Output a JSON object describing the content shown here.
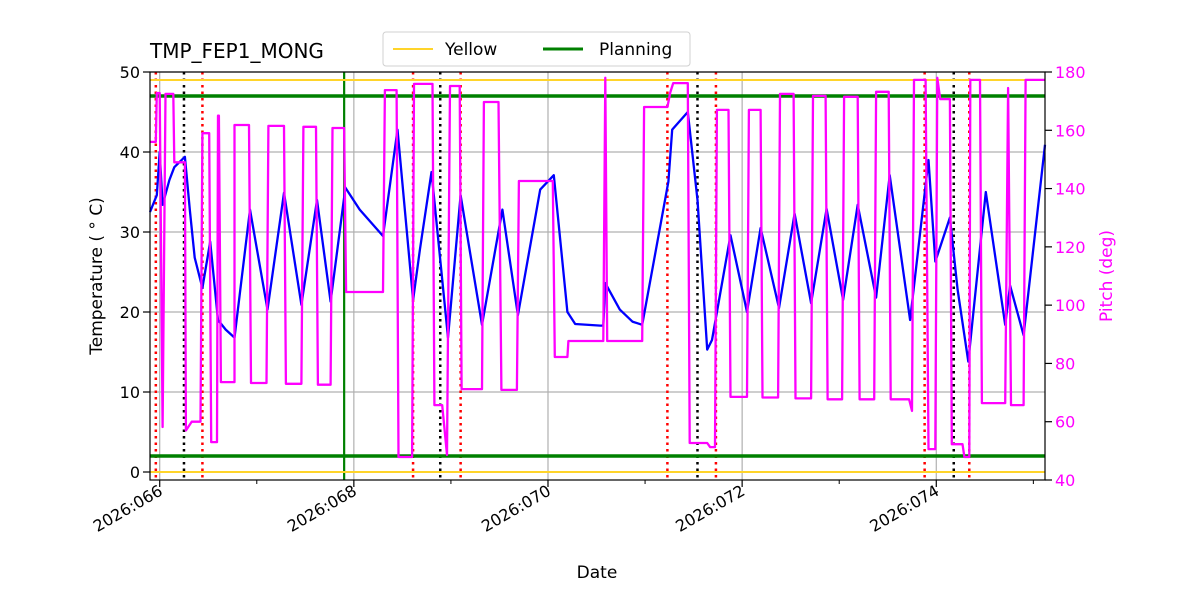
{
  "chart_data": {
    "type": "line",
    "title": "TMP_FEP1_MONG",
    "xlabel": "Date",
    "ylabel": "Temperature ($^\\circ$C)",
    "ylabel_display": "Temperature ( ° C)",
    "y2label": "Pitch (deg)",
    "xlim": [
      65.9,
      75.12
    ],
    "ylim": [
      -1,
      50
    ],
    "y2lim": [
      40,
      180
    ],
    "grid": true,
    "legend_placement": "top-center",
    "x_ticks": [
      {
        "value": 66,
        "label": "2026:066"
      },
      {
        "value": 68,
        "label": "2026:068"
      },
      {
        "value": 70,
        "label": "2026:070"
      },
      {
        "value": 72,
        "label": "2026:072"
      },
      {
        "value": 74,
        "label": "2026:074"
      }
    ],
    "x_minor_ticks": [
      67,
      69,
      71,
      73,
      75
    ],
    "y_ticks": [
      0,
      10,
      20,
      30,
      40,
      50
    ],
    "y2_ticks": [
      40,
      60,
      80,
      100,
      120,
      140,
      160,
      180
    ],
    "colors": {
      "temperature": "#0000ff",
      "pitch": "#ff00ff",
      "yellow": "#ffd42a",
      "planning": "#008000",
      "red_marker": "#ff0000",
      "black_marker": "#000000",
      "grid": "#b0b0b0"
    },
    "limits": [
      {
        "name": "Yellow",
        "values": [
          49,
          0
        ],
        "color": "#ffd42a"
      },
      {
        "name": "Planning",
        "values": [
          47,
          2
        ],
        "color": "#008000"
      }
    ],
    "vertical_markers": {
      "red_dotted": [
        65.96,
        66.44,
        68.61,
        69.1,
        71.23,
        71.73,
        73.88,
        74.34
      ],
      "black_dotted": [
        66.25,
        68.89,
        71.54,
        74.18
      ],
      "green_solid": [
        67.9
      ]
    },
    "series": [
      {
        "axis": "left",
        "points": [
          [
            65.9,
            32.5
          ],
          [
            65.97,
            34.6
          ],
          [
            66.0,
            40.0
          ],
          [
            66.03,
            33.4
          ],
          [
            66.1,
            36.5
          ],
          [
            66.15,
            38.1
          ],
          [
            66.26,
            39.4
          ],
          [
            66.31,
            32.8
          ],
          [
            66.36,
            26.8
          ],
          [
            66.44,
            23.0
          ],
          [
            66.52,
            28.8
          ],
          [
            66.6,
            19.0
          ],
          [
            66.68,
            17.8
          ],
          [
            66.77,
            16.8
          ],
          [
            66.93,
            32.8
          ],
          [
            67.11,
            20.3
          ],
          [
            67.28,
            34.9
          ],
          [
            67.46,
            20.9
          ],
          [
            67.62,
            34.0
          ],
          [
            67.76,
            21.3
          ],
          [
            67.9,
            34.3
          ],
          [
            67.91,
            35.6
          ],
          [
            68.06,
            32.8
          ],
          [
            68.27,
            29.9
          ],
          [
            68.3,
            29.5
          ],
          [
            68.45,
            42.8
          ],
          [
            68.61,
            21.5
          ],
          [
            68.68,
            27.8
          ],
          [
            68.8,
            37.5
          ],
          [
            68.97,
            16.8
          ],
          [
            69.1,
            34.6
          ],
          [
            69.32,
            18.4
          ],
          [
            69.53,
            32.8
          ],
          [
            69.69,
            19.6
          ],
          [
            69.92,
            35.3
          ],
          [
            70.06,
            37.1
          ],
          [
            70.2,
            20.0
          ],
          [
            70.28,
            18.5
          ],
          [
            70.54,
            18.3
          ],
          [
            70.57,
            18.3
          ],
          [
            70.59,
            23.6
          ],
          [
            70.74,
            20.3
          ],
          [
            70.87,
            18.8
          ],
          [
            70.97,
            18.4
          ],
          [
            71.24,
            36.3
          ],
          [
            71.28,
            42.8
          ],
          [
            71.44,
            45.0
          ],
          [
            71.54,
            34.0
          ],
          [
            71.64,
            15.3
          ],
          [
            71.69,
            16.5
          ],
          [
            71.88,
            29.6
          ],
          [
            72.05,
            20.0
          ],
          [
            72.19,
            30.5
          ],
          [
            72.38,
            20.5
          ],
          [
            72.54,
            32.3
          ],
          [
            72.71,
            21.1
          ],
          [
            72.87,
            32.9
          ],
          [
            73.04,
            21.5
          ],
          [
            73.19,
            33.4
          ],
          [
            73.38,
            21.8
          ],
          [
            73.52,
            37.1
          ],
          [
            73.73,
            19.0
          ],
          [
            73.92,
            39.0
          ],
          [
            73.99,
            26.3
          ],
          [
            74.14,
            31.8
          ],
          [
            74.22,
            22.8
          ],
          [
            74.33,
            13.8
          ],
          [
            74.51,
            35.0
          ],
          [
            74.71,
            18.4
          ],
          [
            74.76,
            23.3
          ],
          [
            74.9,
            17.1
          ],
          [
            75.12,
            40.9
          ]
        ]
      },
      {
        "axis": "right",
        "points": [
          [
            65.9,
            156
          ],
          [
            65.96,
            156
          ],
          [
            65.97,
            172.8
          ],
          [
            66.0,
            172.8
          ],
          [
            66.03,
            58.2
          ],
          [
            66.06,
            172.5
          ],
          [
            66.14,
            172.5
          ],
          [
            66.15,
            149
          ],
          [
            66.26,
            149
          ],
          [
            66.27,
            57
          ],
          [
            66.33,
            60
          ],
          [
            66.42,
            60
          ],
          [
            66.44,
            159
          ],
          [
            66.51,
            159
          ],
          [
            66.53,
            53
          ],
          [
            66.59,
            53
          ],
          [
            66.6,
            165
          ],
          [
            66.61,
            165
          ],
          [
            66.63,
            73.6
          ],
          [
            66.77,
            73.6
          ],
          [
            66.77,
            161.8
          ],
          [
            66.92,
            161.8
          ],
          [
            66.94,
            73.3
          ],
          [
            67.1,
            73.3
          ],
          [
            67.12,
            161.5
          ],
          [
            67.28,
            161.5
          ],
          [
            67.3,
            73
          ],
          [
            67.46,
            73
          ],
          [
            67.48,
            161.2
          ],
          [
            67.61,
            161.2
          ],
          [
            67.63,
            72.7
          ],
          [
            67.76,
            72.7
          ],
          [
            67.78,
            160.8
          ],
          [
            67.9,
            160.8
          ],
          [
            67.92,
            104.5
          ],
          [
            68.3,
            104.5
          ],
          [
            68.32,
            173.8
          ],
          [
            68.44,
            173.8
          ],
          [
            68.46,
            47.9
          ],
          [
            68.6,
            47.9
          ],
          [
            68.62,
            175.9
          ],
          [
            68.81,
            175.9
          ],
          [
            68.83,
            65.7
          ],
          [
            68.91,
            65.7
          ],
          [
            68.96,
            48.6
          ],
          [
            68.99,
            175.2
          ],
          [
            69.09,
            175.2
          ],
          [
            69.11,
            71.2
          ],
          [
            69.32,
            71.2
          ],
          [
            69.34,
            169.7
          ],
          [
            69.49,
            169.7
          ],
          [
            69.52,
            70.9
          ],
          [
            69.68,
            70.9
          ],
          [
            69.7,
            142.6
          ],
          [
            70.05,
            142.6
          ],
          [
            70.07,
            82.2
          ],
          [
            70.2,
            82.2
          ],
          [
            70.21,
            87.7
          ],
          [
            70.57,
            87.7
          ],
          [
            70.59,
            178
          ],
          [
            70.61,
            87.7
          ],
          [
            70.97,
            87.7
          ],
          [
            70.99,
            168
          ],
          [
            71.23,
            168
          ],
          [
            71.26,
            173
          ],
          [
            71.29,
            176.2
          ],
          [
            71.44,
            176.2
          ],
          [
            71.46,
            52.7
          ],
          [
            71.64,
            52.7
          ],
          [
            71.67,
            51.3
          ],
          [
            71.72,
            51.3
          ],
          [
            71.74,
            167
          ],
          [
            71.86,
            167
          ],
          [
            71.88,
            68.5
          ],
          [
            72.05,
            68.5
          ],
          [
            72.07,
            167
          ],
          [
            72.19,
            167
          ],
          [
            72.21,
            68.3
          ],
          [
            72.37,
            68.3
          ],
          [
            72.39,
            172.5
          ],
          [
            72.53,
            172.5
          ],
          [
            72.55,
            68
          ],
          [
            72.71,
            68
          ],
          [
            72.73,
            171.8
          ],
          [
            72.86,
            171.8
          ],
          [
            72.88,
            67.7
          ],
          [
            73.03,
            67.7
          ],
          [
            73.05,
            171.5
          ],
          [
            73.19,
            171.5
          ],
          [
            73.21,
            67.7
          ],
          [
            73.36,
            67.7
          ],
          [
            73.38,
            173.2
          ],
          [
            73.51,
            173.2
          ],
          [
            73.53,
            67.7
          ],
          [
            73.72,
            67.7
          ],
          [
            73.75,
            63.7
          ],
          [
            73.77,
            177.3
          ],
          [
            73.89,
            177.3
          ],
          [
            73.92,
            50.6
          ],
          [
            73.99,
            50.6
          ],
          [
            74.01,
            178
          ],
          [
            74.04,
            170.7
          ],
          [
            74.14,
            170.7
          ],
          [
            74.16,
            52.3
          ],
          [
            74.27,
            52.3
          ],
          [
            74.29,
            47.9
          ],
          [
            74.34,
            47.9
          ],
          [
            74.35,
            177.3
          ],
          [
            74.45,
            177.3
          ],
          [
            74.47,
            66.4
          ],
          [
            74.71,
            66.4
          ],
          [
            74.74,
            174.5
          ],
          [
            74.77,
            65.7
          ],
          [
            74.9,
            65.7
          ],
          [
            74.92,
            177.3
          ],
          [
            75.12,
            177.3
          ]
        ]
      }
    ]
  },
  "legend": {
    "items": [
      {
        "label": "Yellow",
        "color": "#ffd42a"
      },
      {
        "label": "Planning",
        "color": "#008000"
      }
    ]
  }
}
